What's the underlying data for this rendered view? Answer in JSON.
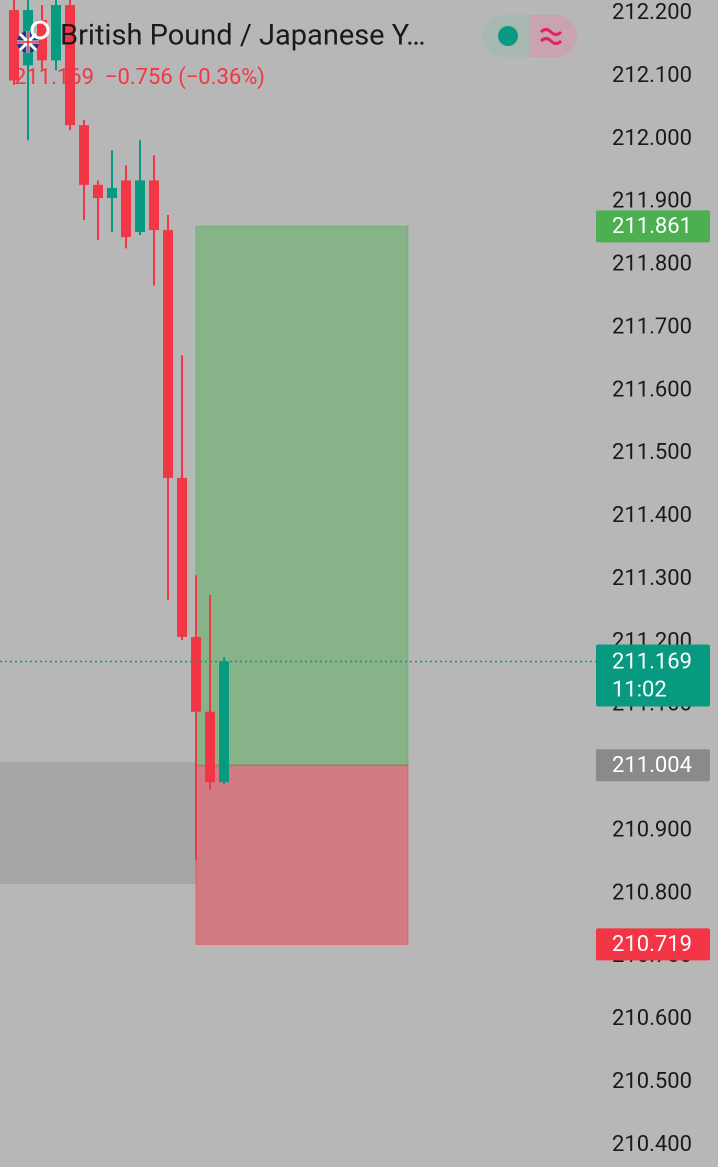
{
  "chart_data": {
    "type": "candlestick",
    "title": "British Pound / Japanese Y…",
    "subtitle": "211.169  −0.756 (−0.36%)",
    "ylim": [
      210.365,
      212.221
    ],
    "yticks": [
      {
        "value": 212.2,
        "label": "212.200"
      },
      {
        "value": 212.1,
        "label": "212.100"
      },
      {
        "value": 212.0,
        "label": "212.000"
      },
      {
        "value": 211.9,
        "label": "211.900"
      },
      {
        "value": 211.8,
        "label": "211.800"
      },
      {
        "value": 211.7,
        "label": "211.700"
      },
      {
        "value": 211.6,
        "label": "211.600"
      },
      {
        "value": 211.5,
        "label": "211.500"
      },
      {
        "value": 211.4,
        "label": "211.400"
      },
      {
        "value": 211.3,
        "label": "211.300"
      },
      {
        "value": 211.2,
        "label": "211.200"
      },
      {
        "value": 211.1,
        "label": "211.100"
      },
      {
        "value": 211.0,
        "label": "211.000"
      },
      {
        "value": 210.9,
        "label": "210.900"
      },
      {
        "value": 210.8,
        "label": "210.800"
      },
      {
        "value": 210.7,
        "label": "210.700"
      },
      {
        "value": 210.6,
        "label": "210.600"
      },
      {
        "value": 210.5,
        "label": "210.500"
      },
      {
        "value": 210.4,
        "label": "210.400"
      }
    ],
    "open": [
      212.205,
      212.117,
      212.189,
      212.125,
      212.213,
      212.022,
      211.927,
      211.906,
      211.934,
      211.852,
      211.934,
      211.855,
      211.461,
      211.208,
      211.089,
      210.977
    ],
    "high": [
      212.221,
      212.221,
      212.213,
      212.221,
      212.221,
      212.03,
      211.934,
      211.982,
      211.958,
      211.998,
      211.974,
      211.879,
      211.656,
      211.306,
      211.275,
      211.176
    ],
    "low": [
      212.086,
      211.998,
      212.109,
      212.109,
      212.014,
      211.871,
      211.839,
      211.852,
      211.826,
      211.847,
      211.767,
      211.267,
      211.203,
      210.853,
      210.965,
      210.974
    ],
    "close": [
      212.093,
      212.205,
      212.125,
      212.213,
      212.022,
      211.927,
      211.906,
      211.922,
      211.844,
      211.934,
      211.855,
      211.461,
      211.208,
      211.089,
      210.977,
      211.169
    ],
    "up_color": "#089981",
    "down_color": "#f23645",
    "last_price": 211.169,
    "countdown": "11:02",
    "position": {
      "target": 211.861,
      "entry": 211.004,
      "stop": 210.719
    }
  }
}
